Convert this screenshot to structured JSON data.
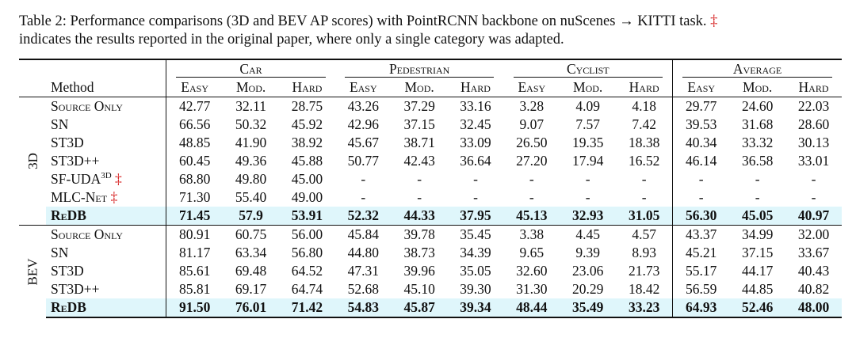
{
  "caption": {
    "line1_before": "Table 2: Performance comparisons (3D and BEV AP scores) with PointRCNN backbone on nuScenes → KITTI task.",
    "dagger": "‡",
    "line2": "indicates the results reported in the original paper, where only a single category was adapted."
  },
  "header": {
    "method": "Method",
    "groups": [
      "Car",
      "Pedestrian",
      "Cyclist",
      "Average"
    ],
    "subcols": [
      "Easy",
      "Mod.",
      "Hard"
    ]
  },
  "sections": [
    {
      "label": "3D",
      "rows": [
        {
          "method": "Source Only",
          "sup": "",
          "dagger": "",
          "values": [
            "42.77",
            "32.11",
            "28.75",
            "43.26",
            "37.29",
            "33.16",
            "3.28",
            "4.09",
            "4.18",
            "29.77",
            "24.60",
            "22.03"
          ]
        },
        {
          "method": "SN",
          "sup": "",
          "dagger": "",
          "values": [
            "66.56",
            "50.32",
            "45.92",
            "42.96",
            "37.15",
            "32.45",
            "9.07",
            "7.57",
            "7.42",
            "39.53",
            "31.68",
            "28.60"
          ]
        },
        {
          "method": "ST3D",
          "sup": "",
          "dagger": "",
          "values": [
            "48.85",
            "41.90",
            "38.92",
            "45.67",
            "38.71",
            "33.09",
            "26.50",
            "19.35",
            "18.38",
            "40.34",
            "33.32",
            "30.13"
          ]
        },
        {
          "method": "ST3D++",
          "sup": "",
          "dagger": "",
          "values": [
            "60.45",
            "49.36",
            "45.88",
            "50.77",
            "42.43",
            "36.64",
            "27.20",
            "17.94",
            "16.52",
            "46.14",
            "36.58",
            "33.01"
          ]
        },
        {
          "method": "SF-UDA",
          "sup": "3D",
          "dagger": "‡",
          "values": [
            "68.80",
            "49.80",
            "45.00",
            "-",
            "-",
            "-",
            "-",
            "-",
            "-",
            "-",
            "-",
            "-"
          ]
        },
        {
          "method": "MLC-Net",
          "sup": "",
          "dagger": "‡",
          "values": [
            "71.30",
            "55.40",
            "49.00",
            "-",
            "-",
            "-",
            "-",
            "-",
            "-",
            "-",
            "-",
            "-"
          ]
        },
        {
          "method": "ReDB",
          "sup": "",
          "dagger": "",
          "highlight": true,
          "values": [
            "71.45",
            "57.9",
            "53.91",
            "52.32",
            "44.33",
            "37.95",
            "45.13",
            "32.93",
            "31.05",
            "56.30",
            "45.05",
            "40.97"
          ]
        }
      ]
    },
    {
      "label": "BEV",
      "rows": [
        {
          "method": "Source Only",
          "sup": "",
          "dagger": "",
          "values": [
            "80.91",
            "60.75",
            "56.00",
            "45.84",
            "39.78",
            "35.45",
            "3.38",
            "4.45",
            "4.57",
            "43.37",
            "34.99",
            "32.00"
          ]
        },
        {
          "method": "SN",
          "sup": "",
          "dagger": "",
          "values": [
            "81.17",
            "63.34",
            "56.80",
            "44.80",
            "38.73",
            "34.39",
            "9.65",
            "9.39",
            "8.93",
            "45.21",
            "37.15",
            "33.67"
          ]
        },
        {
          "method": "ST3D",
          "sup": "",
          "dagger": "",
          "values": [
            "85.61",
            "69.48",
            "64.52",
            "47.31",
            "39.96",
            "35.05",
            "32.60",
            "23.06",
            "21.73",
            "55.17",
            "44.17",
            "40.43"
          ]
        },
        {
          "method": "ST3D++",
          "sup": "",
          "dagger": "",
          "values": [
            "85.81",
            "69.17",
            "64.74",
            "52.68",
            "45.10",
            "39.30",
            "31.30",
            "20.29",
            "18.42",
            "56.59",
            "44.85",
            "40.82"
          ]
        },
        {
          "method": "ReDB",
          "sup": "",
          "dagger": "",
          "highlight": true,
          "values": [
            "91.50",
            "76.01",
            "71.42",
            "54.83",
            "45.87",
            "39.34",
            "48.44",
            "35.49",
            "33.23",
            "64.93",
            "52.46",
            "48.00"
          ]
        }
      ]
    }
  ]
}
